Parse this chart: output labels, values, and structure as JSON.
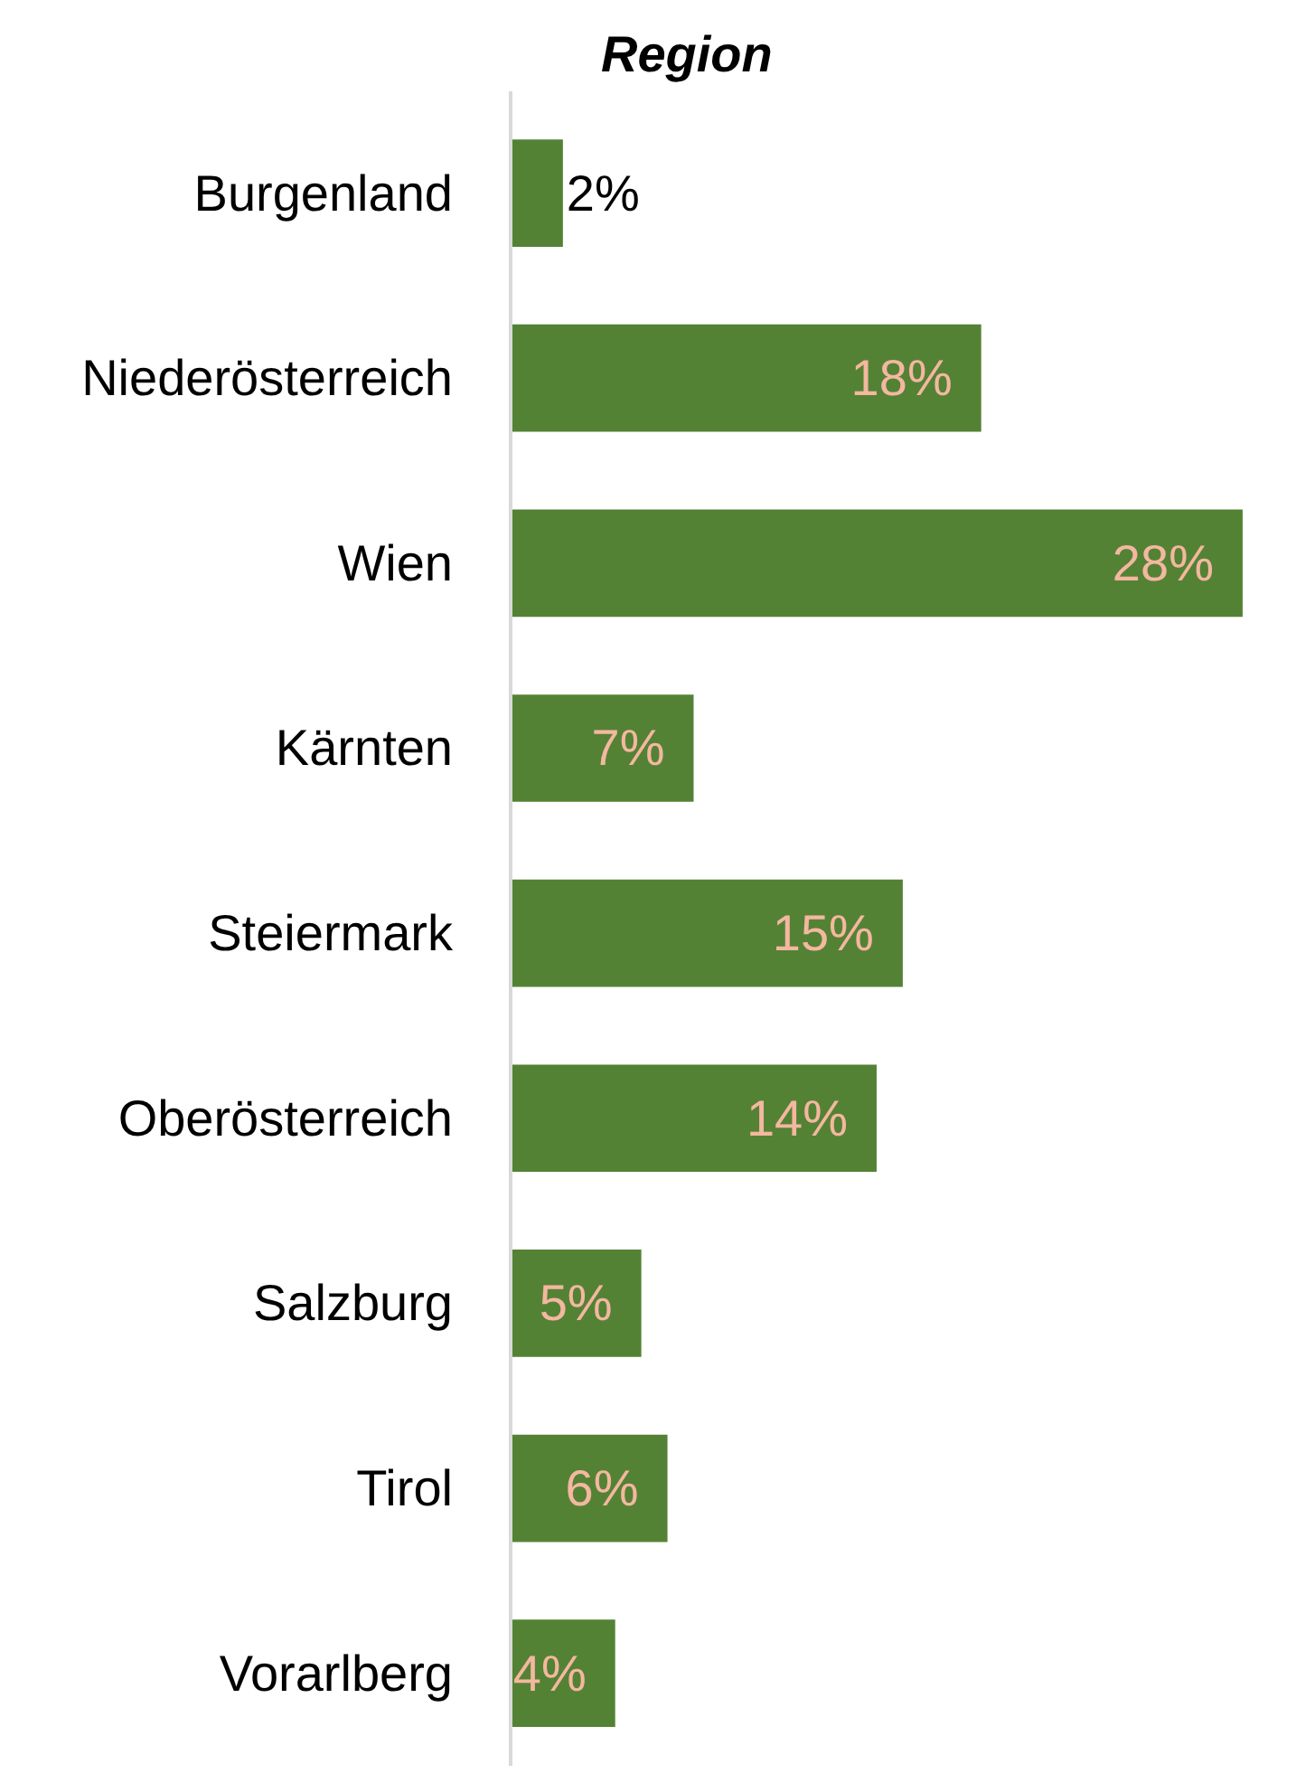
{
  "chart_data": {
    "type": "bar",
    "orientation": "horizontal",
    "title": "Region",
    "categories": [
      "Burgenland",
      "Niederösterreich",
      "Wien",
      "Kärnten",
      "Steiermark",
      "Oberösterreich",
      "Salzburg",
      "Tirol",
      "Vorarlberg"
    ],
    "values": [
      2,
      18,
      28,
      7,
      15,
      14,
      5,
      6,
      4
    ],
    "value_labels": [
      "2%",
      "18%",
      "28%",
      "7%",
      "15%",
      "14%",
      "5%",
      "6%",
      "4%"
    ],
    "color": "#548235"
  }
}
